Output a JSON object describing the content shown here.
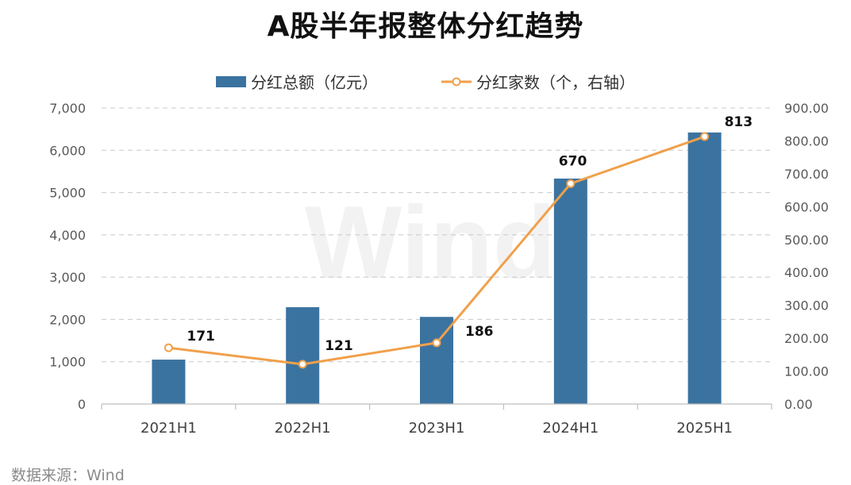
{
  "chart_data": {
    "type": "bar",
    "title": "A股半年报整体分红趋势",
    "categories": [
      "2021H1",
      "2022H1",
      "2023H1",
      "2024H1",
      "2025H1"
    ],
    "series": [
      {
        "name": "分红总额（亿元）",
        "type": "bar",
        "axis": "left",
        "color": "#3b73a0",
        "values": [
          1050,
          2290,
          2060,
          5330,
          6420
        ]
      },
      {
        "name": "分红家数（个，右轴）",
        "type": "line",
        "axis": "right",
        "color": "#f0a04b",
        "values": [
          171,
          121,
          186,
          670,
          813
        ],
        "data_labels": [
          "171",
          "121",
          "186",
          "670",
          "813"
        ]
      }
    ],
    "y_left": {
      "ylim": [
        0,
        7000
      ],
      "ticks": [
        0,
        1000,
        2000,
        3000,
        4000,
        5000,
        6000,
        7000
      ],
      "tick_labels": [
        "0",
        "1,000",
        "2,000",
        "3,000",
        "4,000",
        "5,000",
        "6,000",
        "7,000"
      ]
    },
    "y_right": {
      "ylim": [
        0,
        900
      ],
      "ticks": [
        0,
        100,
        200,
        300,
        400,
        500,
        600,
        700,
        800,
        900
      ],
      "tick_labels": [
        "0.00",
        "100.00",
        "200.00",
        "300.00",
        "400.00",
        "500.00",
        "600.00",
        "700.00",
        "800.00",
        "900.00"
      ]
    },
    "grid": "dashed-horizontal",
    "legend_position": "top-center",
    "watermark": "Wind",
    "source": "数据来源：Wind"
  }
}
